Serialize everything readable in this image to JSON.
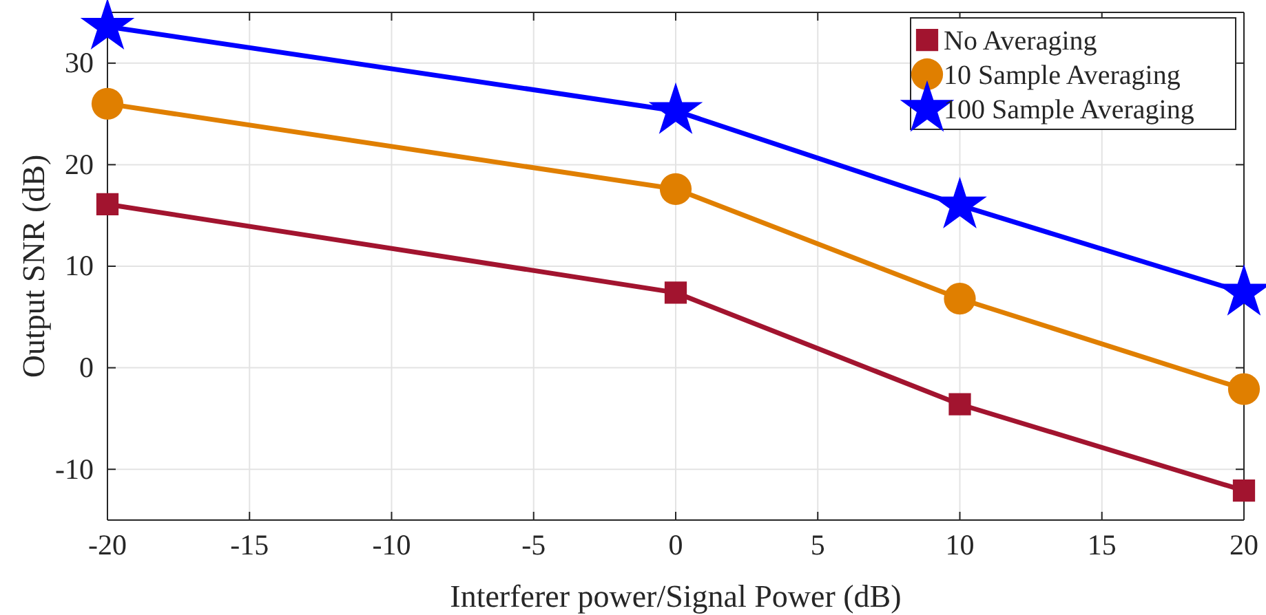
{
  "chart_data": {
    "type": "line",
    "xlabel": "Interferer power/Signal Power (dB)",
    "ylabel": "Output SNR (dB)",
    "x": [
      -20,
      0,
      10,
      20
    ],
    "xlim": [
      -20,
      20
    ],
    "xticks": [
      -20,
      -15,
      -10,
      -5,
      0,
      5,
      10,
      15,
      20
    ],
    "ylim": [
      -15,
      35
    ],
    "yticks": [
      -10,
      0,
      10,
      20,
      30
    ],
    "grid": true,
    "legend": "top right",
    "series": [
      {
        "name": "No Averaging",
        "color": "#a2142f",
        "marker": "square",
        "values": [
          16.1,
          7.4,
          -3.6,
          -12.1
        ]
      },
      {
        "name": "10 Sample Averaging",
        "color": "#e07f00",
        "marker": "circle",
        "values": [
          26.0,
          17.6,
          6.8,
          -2.1
        ]
      },
      {
        "name": "100 Sample Averaging",
        "color": "#0000ff",
        "marker": "star",
        "values": [
          33.6,
          25.3,
          16.0,
          7.4
        ]
      }
    ]
  }
}
